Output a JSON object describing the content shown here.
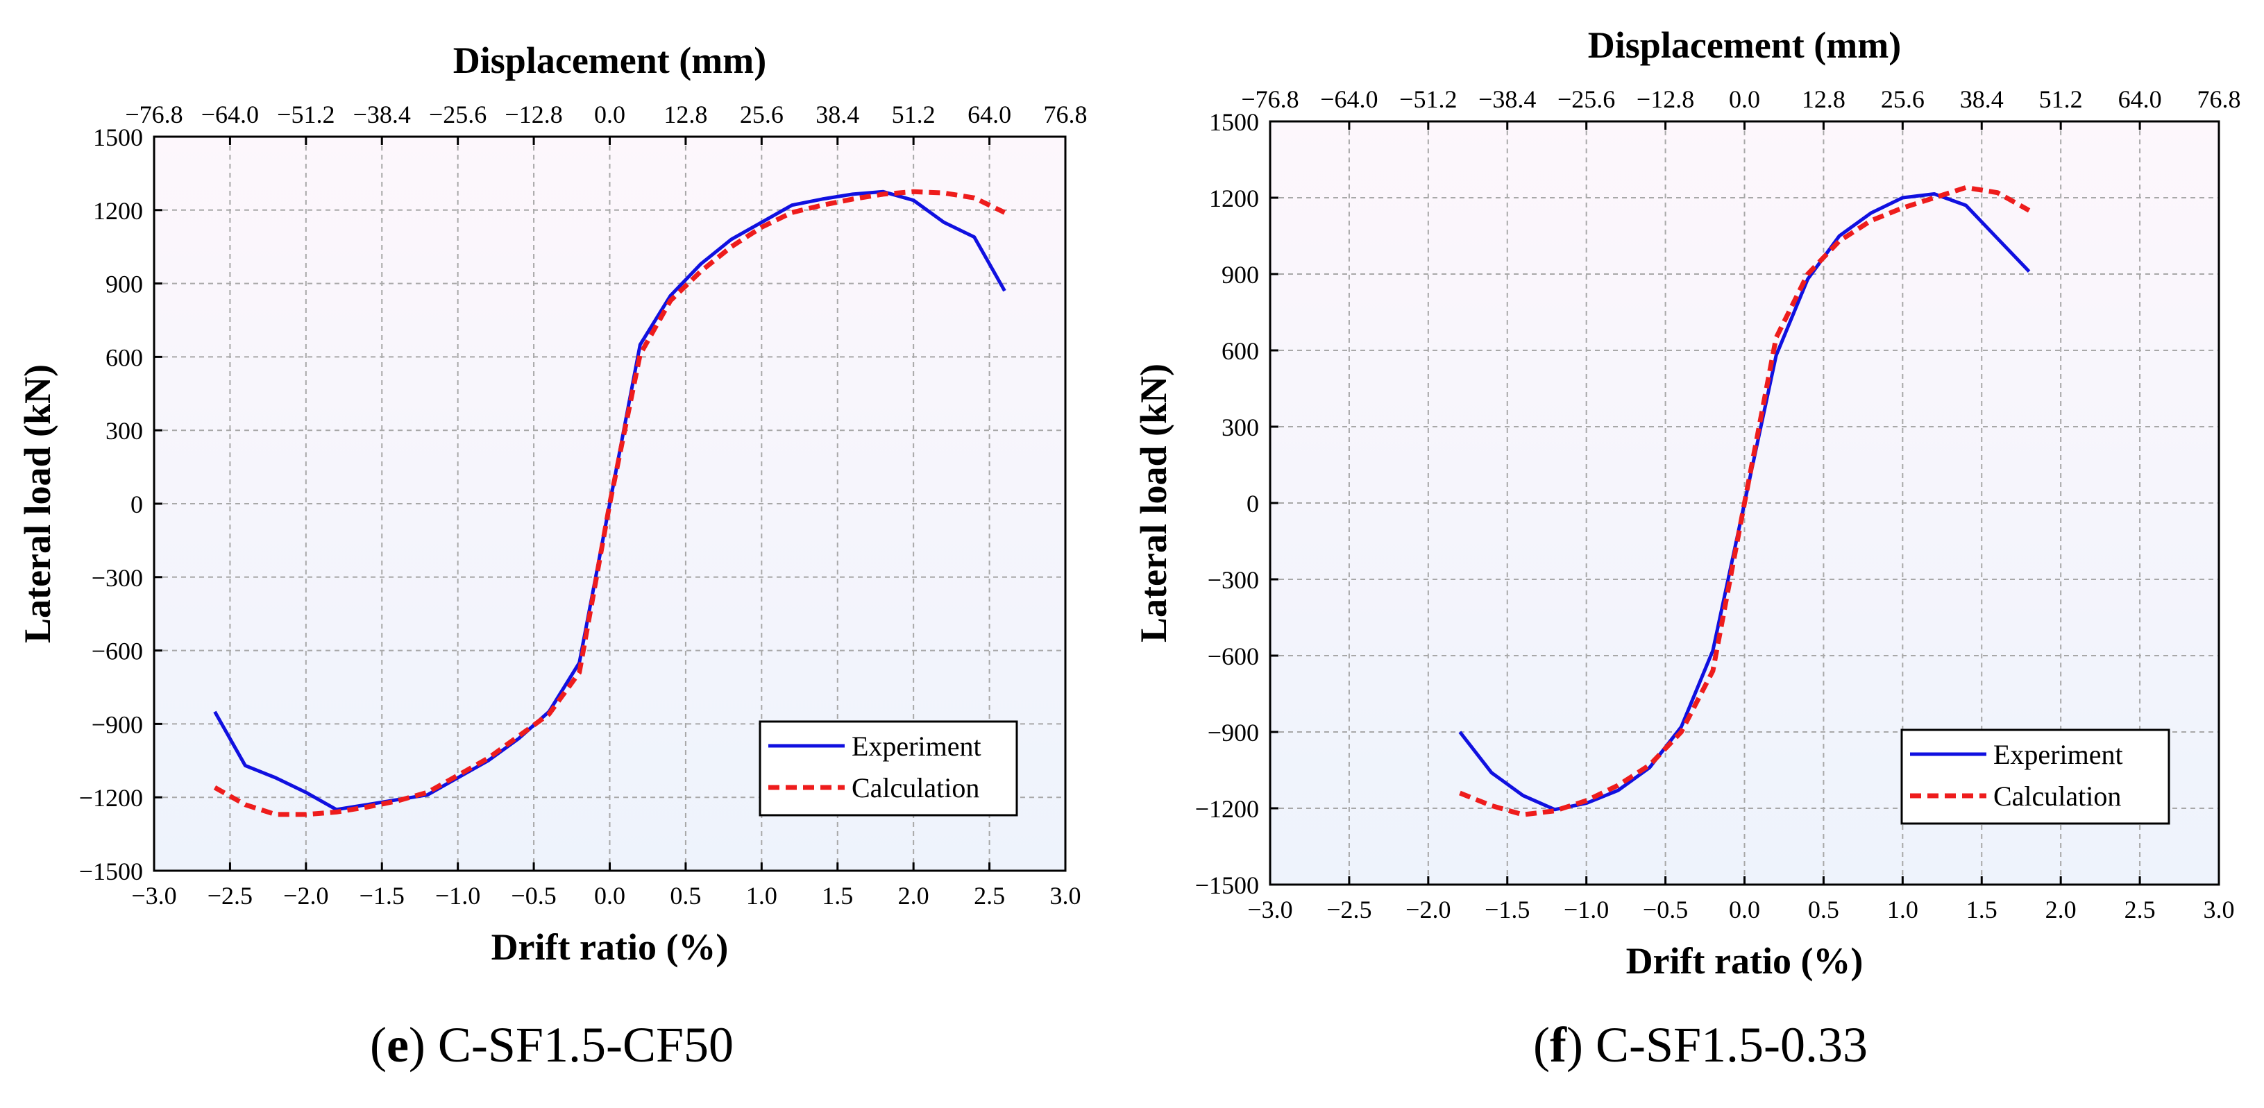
{
  "colors": {
    "experiment": "#1010e0",
    "calculation": "#ee1c1c",
    "grid": "#a8a8a8",
    "plot_bg_top": "#fdf7fc",
    "plot_bg_bottom": "#eef3fc"
  },
  "chart_data": [
    {
      "type": "line",
      "caption_label": "e",
      "caption_text": " C-SF1.5-CF50",
      "xlabel": "Drift ratio (%)",
      "ylabel": "Lateral load  (kN)",
      "x2label": "Displacement (mm)",
      "xlim": [
        -3.0,
        3.0
      ],
      "ylim": [
        -1500,
        1500
      ],
      "xticks": [
        "−3.0",
        "−2.5",
        "−2.0",
        "−1.5",
        "−1.0",
        "−0.5",
        "0.0",
        "0.5",
        "1.0",
        "1.5",
        "2.0",
        "2.5",
        "3.0"
      ],
      "yticks": [
        "1500",
        "1200",
        "900",
        "600",
        "300",
        "0",
        "−300",
        "−600",
        "−900",
        "−1200",
        "−1500"
      ],
      "x2ticks": [
        "−76.8",
        "−64.0",
        "−51.2",
        "−38.4",
        "−25.6",
        "−12.8",
        "0.0",
        "12.8",
        "25.6",
        "38.4",
        "51.2",
        "64.0",
        "76.8"
      ],
      "grid": true,
      "legend_position": "bottom-right",
      "series": [
        {
          "name": "Experiment",
          "style": "solid",
          "x": [
            -2.6,
            -2.4,
            -2.2,
            -2.0,
            -1.8,
            -1.6,
            -1.4,
            -1.2,
            -1.0,
            -0.8,
            -0.6,
            -0.4,
            -0.2,
            0.0,
            0.2,
            0.4,
            0.6,
            0.8,
            1.0,
            1.2,
            1.4,
            1.6,
            1.8,
            2.0,
            2.2,
            2.4,
            2.6
          ],
          "y": [
            -850,
            -1070,
            -1120,
            -1180,
            -1250,
            -1230,
            -1210,
            -1190,
            -1120,
            -1050,
            -960,
            -850,
            -650,
            0,
            650,
            850,
            980,
            1080,
            1150,
            1220,
            1245,
            1265,
            1275,
            1240,
            1150,
            1090,
            870
          ]
        },
        {
          "name": "Calculation",
          "style": "dashed",
          "x": [
            -2.6,
            -2.4,
            -2.2,
            -2.0,
            -1.8,
            -1.6,
            -1.4,
            -1.2,
            -1.0,
            -0.8,
            -0.6,
            -0.4,
            -0.2,
            0.0,
            0.2,
            0.4,
            0.6,
            0.8,
            1.0,
            1.2,
            1.4,
            1.6,
            1.8,
            2.0,
            2.2,
            2.4,
            2.6
          ],
          "y": [
            -1160,
            -1230,
            -1270,
            -1270,
            -1260,
            -1240,
            -1215,
            -1180,
            -1110,
            -1040,
            -950,
            -860,
            -690,
            0,
            610,
            830,
            950,
            1050,
            1130,
            1190,
            1220,
            1245,
            1265,
            1275,
            1270,
            1250,
            1190
          ]
        }
      ]
    },
    {
      "type": "line",
      "caption_label": "f",
      "caption_text": " C-SF1.5-0.33",
      "xlabel": "Drift ratio (%)",
      "ylabel": "Lateral load  (kN)",
      "x2label": "Displacement (mm)",
      "xlim": [
        -3.0,
        3.0
      ],
      "ylim": [
        -1500,
        1500
      ],
      "xticks": [
        "−3.0",
        "−2.5",
        "−2.0",
        "−1.5",
        "−1.0",
        "−0.5",
        "0.0",
        "0.5",
        "1.0",
        "1.5",
        "2.0",
        "2.5",
        "3.0"
      ],
      "yticks": [
        "1500",
        "1200",
        "900",
        "600",
        "300",
        "0",
        "−300",
        "−600",
        "−900",
        "−1200",
        "−1500"
      ],
      "x2ticks": [
        "−76.8",
        "−64.0",
        "−51.2",
        "−38.4",
        "−25.6",
        "−12.8",
        "0.0",
        "12.8",
        "25.6",
        "38.4",
        "51.2",
        "64.0",
        "76.8"
      ],
      "grid": true,
      "legend_position": "bottom-right",
      "series": [
        {
          "name": "Experiment",
          "style": "solid",
          "x": [
            -1.8,
            -1.6,
            -1.4,
            -1.2,
            -1.0,
            -0.8,
            -0.6,
            -0.4,
            -0.2,
            0.0,
            0.2,
            0.4,
            0.6,
            0.8,
            1.0,
            1.2,
            1.4,
            1.6,
            1.8
          ],
          "y": [
            -900,
            -1060,
            -1150,
            -1205,
            -1180,
            -1130,
            -1040,
            -880,
            -580,
            0,
            580,
            880,
            1050,
            1140,
            1200,
            1215,
            1170,
            1040,
            910
          ]
        },
        {
          "name": "Calculation",
          "style": "dashed",
          "x": [
            -1.8,
            -1.6,
            -1.4,
            -1.2,
            -1.0,
            -0.8,
            -0.6,
            -0.4,
            -0.2,
            0.0,
            0.2,
            0.4,
            0.6,
            0.8,
            1.0,
            1.2,
            1.4,
            1.6,
            1.8
          ],
          "y": [
            -1140,
            -1190,
            -1225,
            -1210,
            -1170,
            -1110,
            -1030,
            -900,
            -660,
            0,
            650,
            900,
            1030,
            1110,
            1160,
            1200,
            1240,
            1220,
            1150
          ]
        }
      ]
    }
  ]
}
